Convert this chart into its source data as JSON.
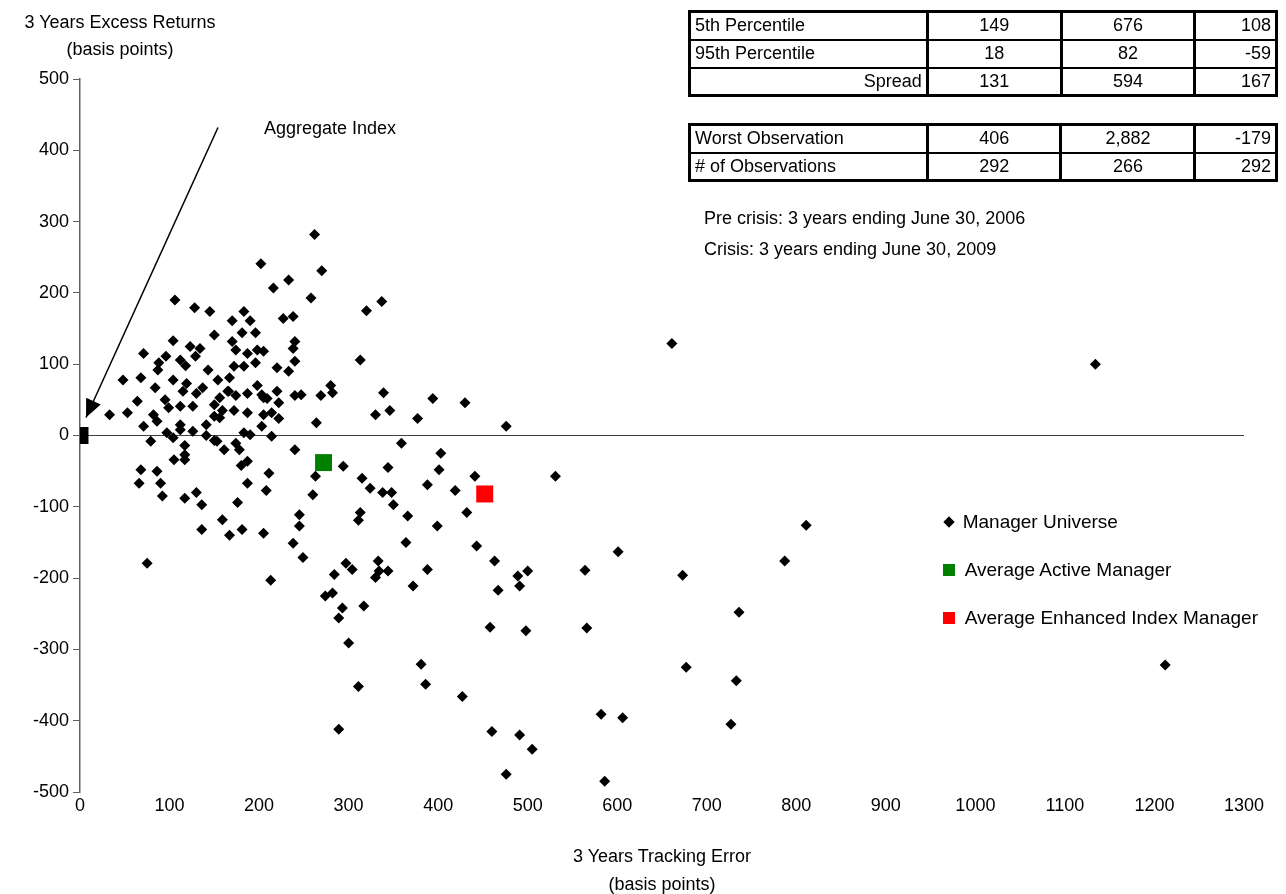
{
  "chart_data": {
    "type": "scatter",
    "xlabel": "3 Years Tracking Error\n(basis points)",
    "ylabel": "3 Years Excess Returns\n(basis points)",
    "xlim": [
      0,
      1300
    ],
    "xticks": [
      0,
      100,
      200,
      300,
      400,
      500,
      600,
      700,
      800,
      900,
      1000,
      1100,
      1200,
      1300
    ],
    "ylim": [
      -500,
      500
    ],
    "yticks": [
      -500,
      -400,
      -300,
      -200,
      -100,
      0,
      100,
      200,
      300,
      400,
      500
    ],
    "grid": false,
    "legend": "right",
    "ref_lines": [
      {
        "axis": "y",
        "value": 0,
        "color": "#404040"
      }
    ],
    "series": [
      {
        "name": "Manager Universe",
        "color": "#000000",
        "marker": "diamond",
        "x": [
          262,
          202,
          270,
          233,
          216,
          258,
          337,
          106,
          128,
          145,
          320,
          183,
          170,
          190,
          227,
          238,
          150,
          181,
          196,
          104,
          240,
          238,
          170,
          174,
          198,
          205,
          313,
          240,
          187,
          71,
          96,
          123,
          134,
          112,
          129,
          88,
          118,
          143,
          172,
          183,
          196,
          220,
          233,
          167,
          198,
          280,
          282,
          166,
          68,
          48,
          87,
          104,
          154,
          119,
          137,
          84,
          64,
          95,
          99,
          115,
          130,
          156,
          165,
          174,
          187,
          205,
          220,
          240,
          269,
          203,
          209,
          222,
          247,
          339,
          394,
          430,
          476,
          377,
          330,
          346,
          264,
          33,
          53,
          82,
          112,
          126,
          150,
          159,
          172,
          187,
          205,
          214,
          222,
          203,
          183,
          190,
          214,
          71,
          86,
          112,
          126,
          141,
          150,
          156,
          97,
          112,
          141,
          661,
          1134,
          79,
          104,
          117,
          150,
          153,
          161,
          174,
          178,
          240,
          105,
          117,
          117,
          180,
          187,
          68,
          86,
          66,
          90,
          211,
          187,
          208,
          260,
          92,
          117,
          130,
          136,
          176,
          245,
          245,
          159,
          136,
          167,
          181,
          205,
          238,
          249,
          75,
          213,
          263,
          294,
          359,
          403,
          401,
          344,
          315,
          324,
          338,
          348,
          350,
          388,
          419,
          441,
          432,
          443,
          399,
          366,
          364,
          313,
          311,
          284,
          297,
          304,
          333,
          334,
          330,
          344,
          388,
          372,
          463,
          467,
          489,
          500,
          491,
          274,
          282,
          293,
          289,
          317,
          300,
          381,
          386,
          311,
          427,
          458,
          498,
          289,
          460,
          491,
          505,
          476,
          531,
          811,
          601,
          564,
          673,
          787,
          736,
          566,
          677,
          1212,
          733,
          582,
          606,
          727,
          586
        ],
        "values": [
          282,
          241,
          231,
          218,
          207,
          193,
          188,
          190,
          179,
          174,
          175,
          174,
          161,
          161,
          164,
          167,
          141,
          144,
          144,
          133,
          132,
          122,
          132,
          120,
          120,
          118,
          106,
          104,
          115,
          115,
          111,
          125,
          122,
          106,
          111,
          102,
          98,
          92,
          97,
          97,
          102,
          95,
          90,
          81,
          70,
          70,
          60,
          62,
          81,
          78,
          92,
          78,
          78,
          73,
          67,
          67,
          48,
          50,
          39,
          62,
          59,
          53,
          62,
          56,
          59,
          53,
          62,
          56,
          56,
          57,
          52,
          46,
          57,
          60,
          52,
          46,
          13,
          24,
          29,
          35,
          18,
          29,
          32,
          29,
          41,
          41,
          43,
          35,
          35,
          32,
          29,
          32,
          24,
          13,
          4,
          1,
          -1,
          13,
          20,
          15,
          6,
          15,
          27,
          25,
          4,
          8,
          0,
          129,
          100,
          -8,
          -3,
          -14,
          -7,
          -8,
          -20,
          -11,
          -20,
          -20,
          -34,
          -34,
          -27,
          -42,
          -36,
          -48,
          -50,
          -67,
          -67,
          -53,
          -67,
          -77,
          -83,
          -85,
          -88,
          -80,
          -97,
          -94,
          -111,
          -127,
          -118,
          -132,
          -140,
          -132,
          -137,
          -151,
          -171,
          -179,
          -203,
          -57,
          -43,
          -11,
          -25,
          -48,
          -45,
          -60,
          -74,
          -80,
          -80,
          -97,
          -69,
          -77,
          -57,
          -108,
          -155,
          -127,
          -113,
          -150,
          -108,
          -119,
          -195,
          -179,
          -188,
          -176,
          -190,
          -199,
          -190,
          -188,
          -211,
          -176,
          -217,
          -197,
          -190,
          -211,
          -225,
          -221,
          -242,
          -256,
          -239,
          -291,
          -321,
          -349,
          -352,
          -366,
          -269,
          -274,
          -412,
          -415,
          -420,
          -440,
          -475,
          -57,
          -126,
          -163,
          -189,
          -196,
          -176,
          -248,
          -270,
          -325,
          -322,
          -344,
          -391,
          -396,
          -405,
          -485
        ]
      },
      {
        "name": "Average Active Manager",
        "color": "#008000",
        "marker": "square",
        "x": [
          272
        ],
        "values": [
          -38
        ]
      },
      {
        "name": "Average Enhanced Index Manager",
        "color": "#ff0000",
        "marker": "square",
        "x": [
          452
        ],
        "values": [
          -82
        ]
      },
      {
        "color": "#000000",
        "marker": "square",
        "x": [
          0
        ],
        "values": [
          0
        ]
      }
    ],
    "annotations": [
      "5th Percentile",
      "149",
      "676",
      "108",
      "95th Percentile",
      "18",
      "82",
      "-59",
      "Spread",
      "131",
      "594",
      "167",
      "Worst Observation",
      "406",
      "2,882",
      "-179",
      "# of Observations",
      "292",
      "266",
      "292",
      "Pre crisis: 3 years ending June 30, 2006",
      "Crisis: 3 years ending June 30, 2009",
      "Aggregate Index"
    ]
  }
}
